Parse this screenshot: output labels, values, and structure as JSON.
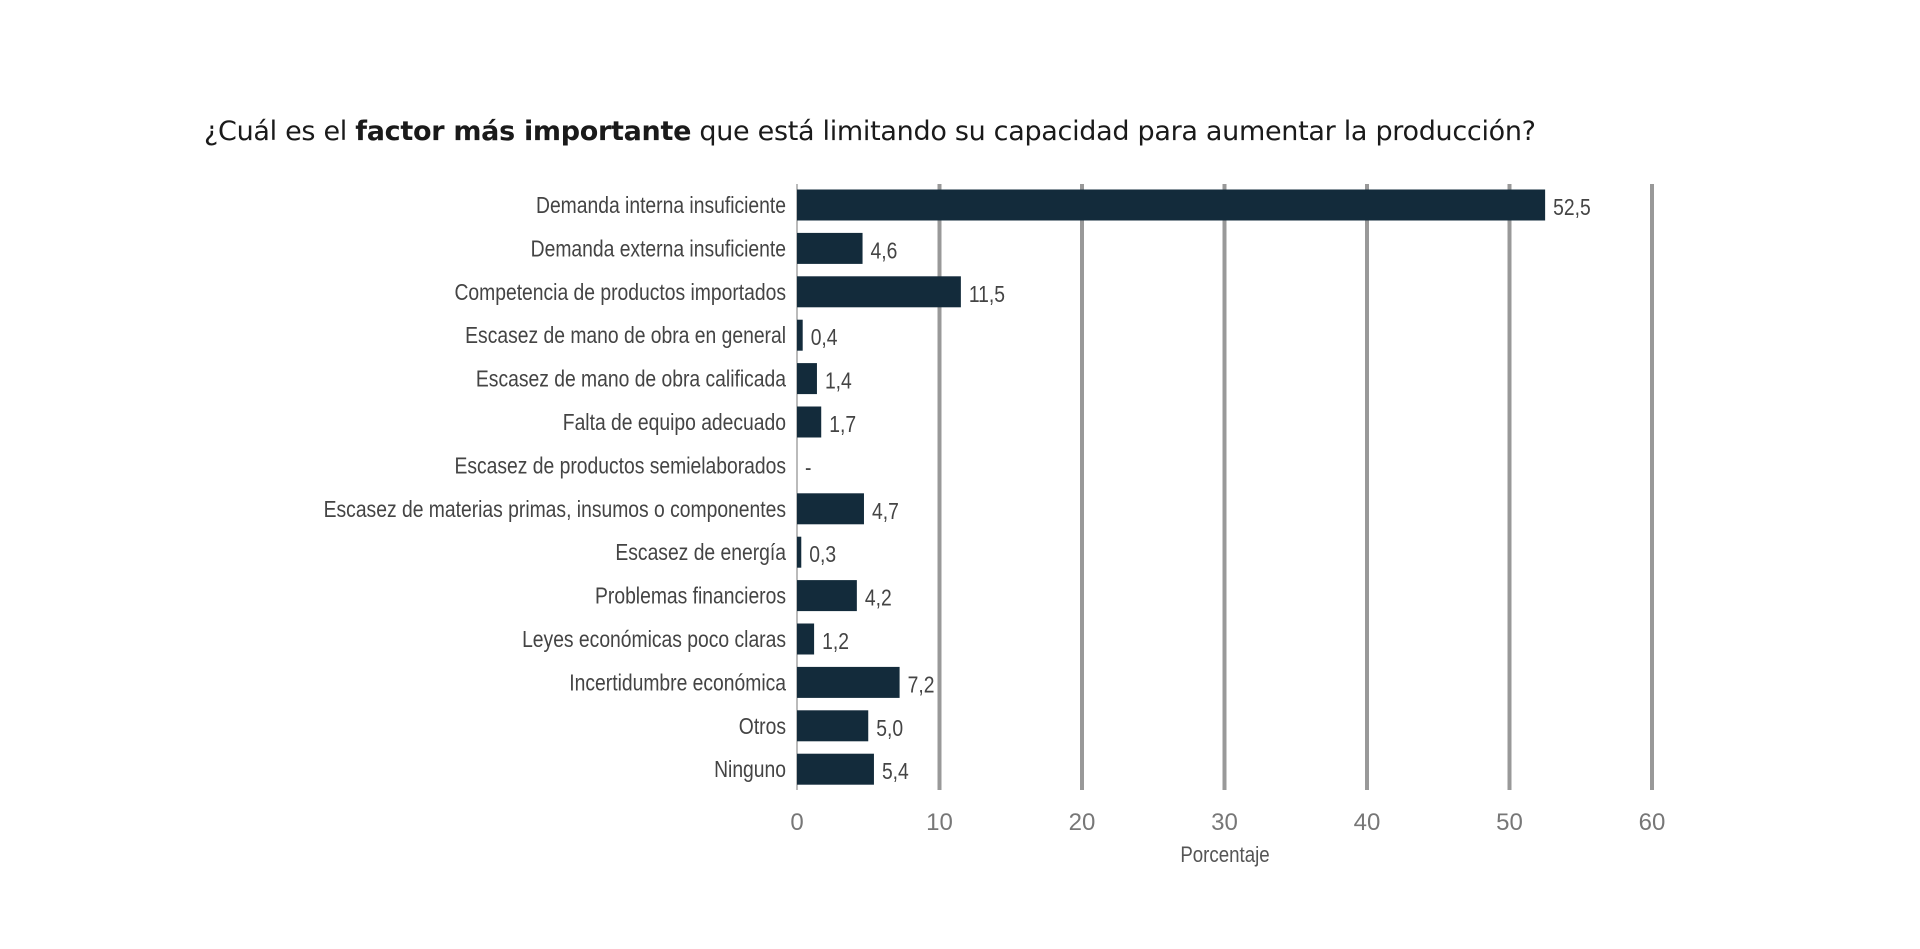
{
  "chart_data": {
    "type": "bar",
    "orientation": "horizontal",
    "title_parts": {
      "pre": "¿Cuál es el ",
      "bold": "factor más importante",
      "post": " que está limitando su capacidad para aumentar la producción?"
    },
    "categories": [
      "Demanda interna insuficiente",
      "Demanda externa insuficiente",
      "Competencia de productos importados",
      "Escasez de mano de obra en general",
      "Escasez de mano de obra calificada",
      "Falta de equipo adecuado",
      "Escasez de productos semielaborados",
      "Escasez de materias primas, insumos o componentes",
      "Escasez de energía",
      "Problemas financieros",
      "Leyes económicas poco claras",
      "Incertidumbre económica",
      "Otros",
      "Ninguno"
    ],
    "values": [
      52.5,
      4.6,
      11.5,
      0.4,
      1.4,
      1.7,
      0,
      4.7,
      0.3,
      4.2,
      1.2,
      7.2,
      5.0,
      5.4
    ],
    "value_labels": [
      "52,5",
      "4,6",
      "11,5",
      "0,4",
      "1,4",
      "1,7",
      "-",
      "4,7",
      "0,3",
      "4,2",
      "1,2",
      "7,2",
      "5,0",
      "5,4"
    ],
    "xlabel": "Porcentaje",
    "ylabel": "",
    "xlim": [
      0,
      60
    ],
    "xticks": [
      "0",
      "10",
      "20",
      "30",
      "40",
      "50",
      "60"
    ],
    "grid": true,
    "bar_color": "#132b3b",
    "grid_color": "#999999"
  }
}
